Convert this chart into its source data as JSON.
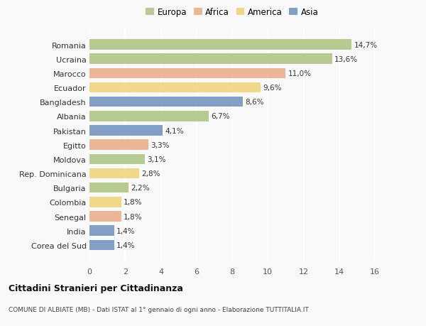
{
  "categories": [
    "Corea del Sud",
    "India",
    "Senegal",
    "Colombia",
    "Bulgaria",
    "Rep. Dominicana",
    "Moldova",
    "Egitto",
    "Pakistan",
    "Albania",
    "Bangladesh",
    "Ecuador",
    "Marocco",
    "Ucraina",
    "Romania"
  ],
  "values": [
    1.4,
    1.4,
    1.8,
    1.8,
    2.2,
    2.8,
    3.1,
    3.3,
    4.1,
    6.7,
    8.6,
    9.6,
    11.0,
    13.6,
    14.7
  ],
  "labels": [
    "1,4%",
    "1,4%",
    "1,8%",
    "1,8%",
    "2,2%",
    "2,8%",
    "3,1%",
    "3,3%",
    "4,1%",
    "6,7%",
    "8,6%",
    "9,6%",
    "11,0%",
    "13,6%",
    "14,7%"
  ],
  "continent": [
    "Asia",
    "Asia",
    "Africa",
    "America",
    "Europa",
    "America",
    "Europa",
    "Africa",
    "Asia",
    "Europa",
    "Asia",
    "America",
    "Africa",
    "Europa",
    "Europa"
  ],
  "colors": {
    "Europa": "#a8c07a",
    "Africa": "#e8a882",
    "America": "#f0d070",
    "Asia": "#6b8cba"
  },
  "legend_labels": [
    "Europa",
    "Africa",
    "America",
    "Asia"
  ],
  "legend_colors": [
    "#a8c07a",
    "#e8a882",
    "#f0d070",
    "#6b8cba"
  ],
  "title": "Cittadini Stranieri per Cittadinanza",
  "subtitle": "COMUNE DI ALBIATE (MB) - Dati ISTAT al 1° gennaio di ogni anno - Elaborazione TUTTITALIA.IT",
  "xlim": [
    0,
    16
  ],
  "xticks": [
    0,
    2,
    4,
    6,
    8,
    10,
    12,
    14,
    16
  ],
  "background_color": "#f9f9f9",
  "bar_alpha": 0.82,
  "bar_height": 0.72
}
